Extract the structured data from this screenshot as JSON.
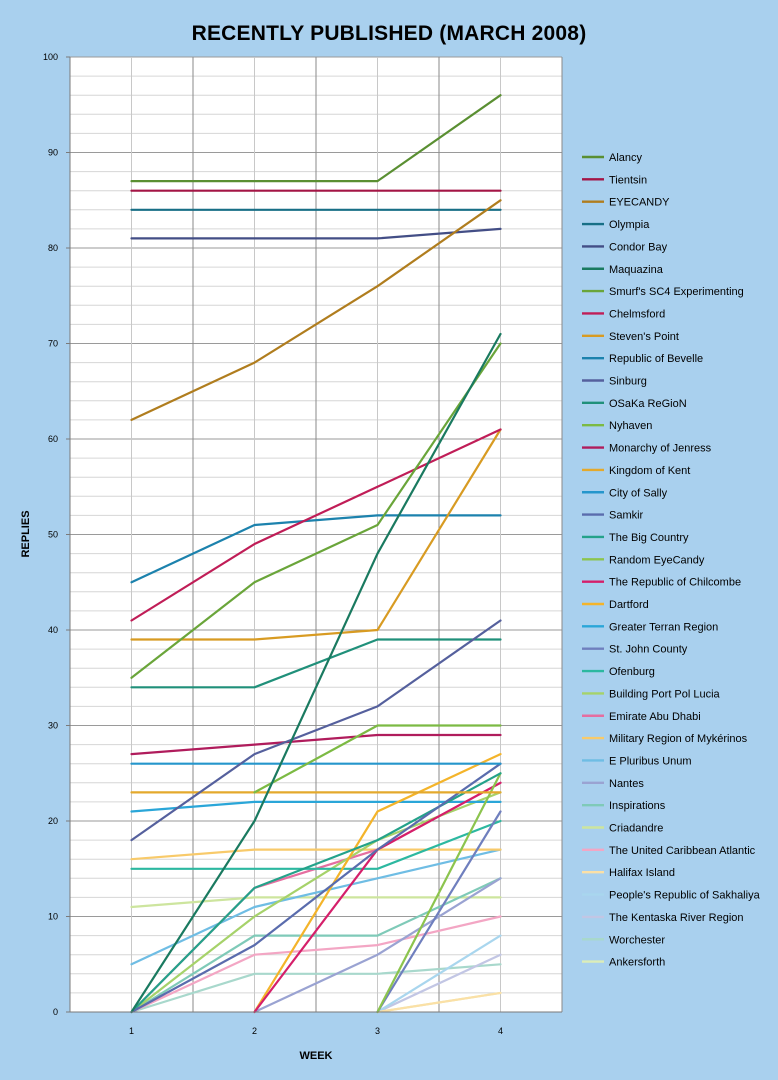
{
  "chart_data": {
    "type": "line",
    "title": "RECENTLY PUBLISHED (MARCH 2008)",
    "xlabel": "WEEK",
    "ylabel": "REPLIES",
    "x": [
      1,
      2,
      3,
      4
    ],
    "xlim": [
      0.5,
      4.5
    ],
    "ylim": [
      0,
      100
    ],
    "yticks": [
      0,
      10,
      20,
      30,
      40,
      50,
      60,
      70,
      80,
      90,
      100
    ],
    "grid": true,
    "legend_position": "right",
    "series": [
      {
        "name": "Alancy",
        "color": "#5a8f32",
        "values": [
          87,
          87,
          87,
          96
        ]
      },
      {
        "name": "Tientsin",
        "color": "#a41545",
        "values": [
          86,
          86,
          86,
          86
        ]
      },
      {
        "name": "EYECANDY",
        "color": "#b07d1e",
        "values": [
          62,
          68,
          76,
          85
        ]
      },
      {
        "name": "Olympia",
        "color": "#186f86",
        "values": [
          84,
          84,
          84,
          84
        ]
      },
      {
        "name": "Condor Bay",
        "color": "#434e86",
        "values": [
          81,
          81,
          81,
          82
        ]
      },
      {
        "name": "Maquazina",
        "color": "#1a7a60",
        "values": [
          0,
          20,
          48,
          71
        ]
      },
      {
        "name": "Smurf's SC4 Experimenting",
        "color": "#6aa53a",
        "values": [
          35,
          45,
          51,
          70
        ]
      },
      {
        "name": "Chelmsford",
        "color": "#c01d57",
        "values": [
          41,
          49,
          55,
          61
        ]
      },
      {
        "name": "Steven's Point",
        "color": "#d89b22",
        "values": [
          39,
          39,
          40,
          61
        ]
      },
      {
        "name": "Republic of Bevelle",
        "color": "#1c82ad",
        "values": [
          45,
          51,
          52,
          52
        ]
      },
      {
        "name": "Sinburg",
        "color": "#55609d",
        "values": [
          18,
          27,
          32,
          41
        ]
      },
      {
        "name": "OSaKa ReGioN",
        "color": "#20907a",
        "values": [
          34,
          34,
          39,
          39
        ]
      },
      {
        "name": "Nyhaven",
        "color": "#7cba43",
        "values": [
          null,
          23,
          30,
          30
        ]
      },
      {
        "name": "Monarchy of Jenress",
        "color": "#b01c5c",
        "values": [
          27,
          28,
          29,
          29
        ]
      },
      {
        "name": "Kingdom of Kent",
        "color": "#e4a92c",
        "values": [
          23,
          23,
          23,
          23
        ]
      },
      {
        "name": "City of Sally",
        "color": "#2596cc",
        "values": [
          26,
          26,
          26,
          26
        ]
      },
      {
        "name": "Samkir",
        "color": "#5a6cad",
        "values": [
          0,
          7,
          17,
          26
        ]
      },
      {
        "name": "The Big Country",
        "color": "#24a28a",
        "values": [
          0,
          13,
          18,
          25
        ]
      },
      {
        "name": "Random EyeCandy",
        "color": "#8cc44e",
        "values": [
          null,
          null,
          0,
          25
        ]
      },
      {
        "name": "The Republic of Chilcombe",
        "color": "#d51f6a",
        "values": [
          null,
          0,
          17,
          24
        ]
      },
      {
        "name": "Dartford",
        "color": "#f4b42a",
        "values": [
          null,
          0,
          21,
          27
        ]
      },
      {
        "name": "Greater Terran Region",
        "color": "#2aa6d8",
        "values": [
          21,
          22,
          22,
          22
        ]
      },
      {
        "name": "St. John County",
        "color": "#6f7fbe",
        "values": [
          null,
          null,
          0,
          21
        ]
      },
      {
        "name": "Ofenburg",
        "color": "#2cb8a0",
        "values": [
          15,
          15,
          15,
          20
        ]
      },
      {
        "name": "Building Port Pol Lucia",
        "color": "#a6d26a",
        "values": [
          0,
          10,
          18,
          23
        ]
      },
      {
        "name": "Emirate Abu Dhabi",
        "color": "#e56ea0",
        "values": [
          0,
          13,
          17,
          24
        ]
      },
      {
        "name": "Military Region of Mykérinos",
        "color": "#f8ca6a",
        "values": [
          16,
          17,
          17,
          17
        ]
      },
      {
        "name": "E Pluribus Unum",
        "color": "#6fbde4",
        "values": [
          5,
          11,
          14,
          17
        ]
      },
      {
        "name": "Nantes",
        "color": "#9aa3d2",
        "values": [
          null,
          0,
          6,
          14
        ]
      },
      {
        "name": "Inspirations",
        "color": "#7fcab8",
        "values": [
          0,
          8,
          8,
          14
        ]
      },
      {
        "name": "Criadandre",
        "color": "#cde59e",
        "values": [
          11,
          12,
          12,
          12
        ]
      },
      {
        "name": "The United Caribbean Atlantic",
        "color": "#f3a6c4",
        "values": [
          0,
          6,
          7,
          10
        ]
      },
      {
        "name": "Halifax Island",
        "color": "#fbe0a6",
        "values": [
          null,
          null,
          0,
          2
        ]
      },
      {
        "name": "People's Republic of Sakhaliya",
        "color": "#a9d6ee",
        "values": [
          null,
          null,
          0,
          8
        ]
      },
      {
        "name": "The Kentaska River Region",
        "color": "#c2c6e4",
        "values": [
          null,
          null,
          0,
          6
        ]
      },
      {
        "name": "Worchester",
        "color": "#a8d8cc",
        "values": [
          0,
          4,
          4,
          5
        ]
      },
      {
        "name": "Ankersforth",
        "color": "#dcedb8",
        "values": [
          null,
          null,
          0,
          2
        ]
      }
    ]
  }
}
